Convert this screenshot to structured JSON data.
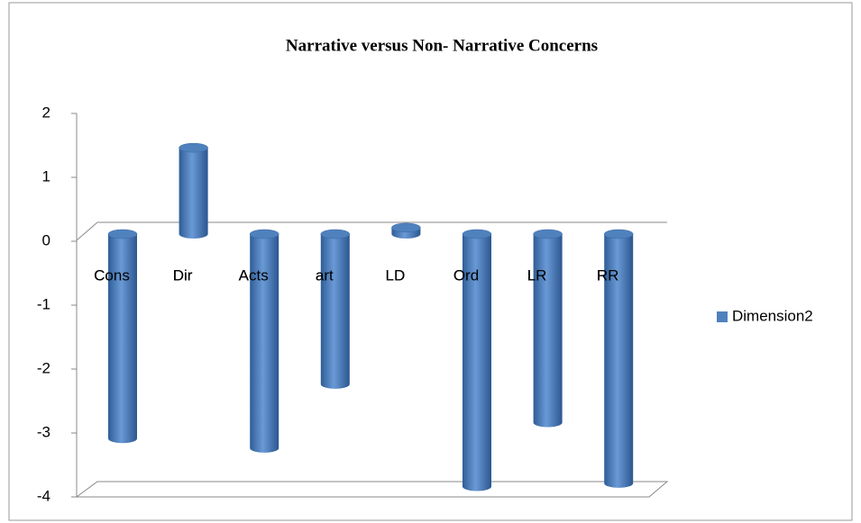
{
  "chart_data": {
    "type": "bar",
    "title": "Narrative versus Non- Narrative Concerns",
    "categories": [
      "Cons",
      "Dir",
      "Acts",
      "art",
      "LD",
      "Ord",
      "LR",
      "RR"
    ],
    "series": [
      {
        "name": "Dimension2",
        "color": "#4f81bd",
        "values": [
          -3.2,
          1.35,
          -3.35,
          -2.35,
          0.1,
          -3.95,
          -2.95,
          -3.9
        ]
      }
    ],
    "ylim": [
      -4,
      2
    ],
    "yticks": [
      -4,
      -3,
      -2,
      -1,
      0,
      1,
      2
    ],
    "grid": false,
    "legend": "right"
  }
}
